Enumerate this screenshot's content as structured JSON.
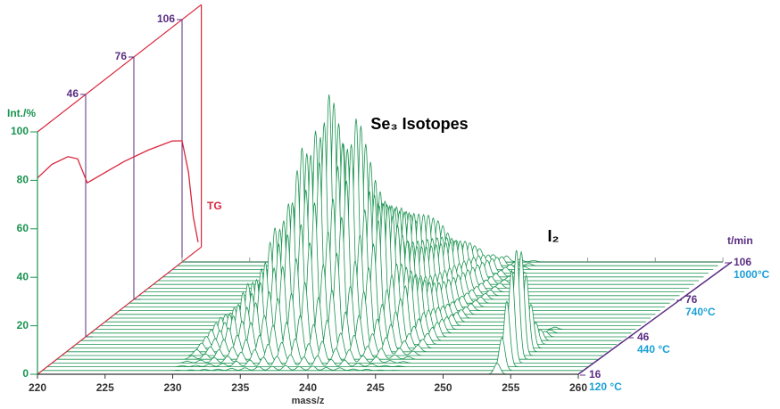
{
  "chart_data": {
    "type": "waterfall",
    "title": "Se₃ Isotopes",
    "x_label": "mass/z",
    "y_label": "Int./%",
    "z_label": "t/min",
    "annotations": {
      "i2": "I₂",
      "tg": "TG"
    },
    "xlim": [
      220,
      260
    ],
    "xticks": [
      220,
      225,
      230,
      235,
      240,
      245,
      250,
      255,
      260
    ],
    "ylim": [
      0,
      100
    ],
    "yticks": [
      0,
      20,
      40,
      60,
      80,
      100
    ],
    "zlim": [
      16,
      106
    ],
    "zticks": [
      16,
      46,
      76,
      106
    ],
    "temperatures": [
      "120 °C",
      "440 °C",
      "740°C",
      "1000°C"
    ],
    "times": [
      16,
      19,
      22,
      25,
      28,
      31,
      34,
      37,
      40,
      43,
      46,
      49,
      52,
      55,
      58,
      61,
      64,
      67,
      70,
      73,
      76,
      79,
      82,
      85,
      88,
      91,
      94,
      97,
      100,
      103,
      106
    ],
    "se3": {
      "masses": [
        230,
        231,
        232,
        233,
        234,
        235,
        236,
        237,
        238,
        239,
        240,
        241,
        242,
        243,
        244,
        245,
        246
      ],
      "intensities": [
        8,
        12,
        22,
        28,
        45,
        55,
        78,
        85,
        100,
        80,
        90,
        60,
        55,
        30,
        25,
        10,
        6
      ],
      "amplitude": [
        0,
        0.02,
        0.05,
        0.1,
        0.18,
        0.3,
        0.45,
        0.6,
        0.75,
        0.9,
        1.0,
        0.95,
        0.85,
        0.75,
        0.65,
        0.58,
        0.52,
        0.48,
        0.45,
        0.42,
        0.4,
        0.38,
        0.36,
        0.34,
        0.32,
        0.3,
        0.27,
        0.24,
        0.2,
        0.15,
        0.1
      ]
    },
    "i2": {
      "mass": 254,
      "intensity": 45,
      "amplitude": [
        0.1,
        0.3,
        0.6,
        0.85,
        1.0,
        0.95,
        0.7,
        0.4,
        0.2,
        0.1,
        0.05,
        0.03,
        0.02,
        0,
        0,
        0,
        0,
        0,
        0,
        0,
        0,
        0,
        0,
        0,
        0,
        0,
        0,
        0,
        0,
        0,
        0
      ]
    },
    "tg": {
      "tlim": [
        16,
        118
      ],
      "ticks": [
        46,
        76,
        106
      ],
      "t": [
        16,
        25,
        35,
        41,
        47,
        55,
        70,
        85,
        100,
        106,
        110,
        113,
        116
      ],
      "values": [
        81,
        82,
        80,
        76,
        63,
        62,
        60,
        57,
        53,
        50,
        35,
        15,
        3
      ]
    },
    "colors": {
      "spectrum": "#1a9450",
      "tg": "#d8263c",
      "time": "#5a2d82",
      "temperature": "#1aa0d8",
      "axis": "#333333",
      "back": "#999999"
    }
  }
}
